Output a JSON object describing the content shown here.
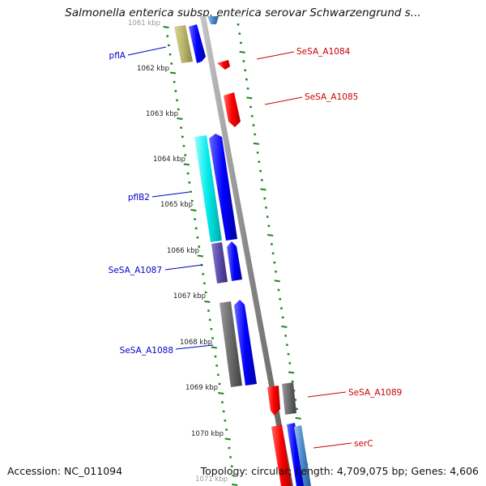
{
  "title": "Salmonella enterica subsp. enterica serovar Schwarzengrund s...",
  "footer": {
    "accession": "Accession: NC_011094",
    "topology": "Topology: circular; Length: 4,709,075 bp; Genes: 4,606"
  },
  "ruler": [
    "1061 kbp",
    "1062 kbp",
    "1063 kbp",
    "1064 kbp",
    "1065 kbp",
    "1066 kbp",
    "1067 kbp",
    "1068 kbp",
    "1069 kbp",
    "1070 kbp",
    "1071 kbp"
  ],
  "left_genes": [
    "pflA",
    "pflB2",
    "SeSA_A1087",
    "SeSA_A1088"
  ],
  "right_genes": [
    "SeSA_A1084",
    "SeSA_A1085",
    "SeSA_A1089",
    "serC"
  ],
  "colors": {
    "left_label": "#0000cc",
    "right_label": "#cc0000",
    "forward_gene": "#ff0000",
    "reverse_gene": "#0000ff",
    "tick": "#1a8a1a",
    "backbone": "#888888"
  }
}
